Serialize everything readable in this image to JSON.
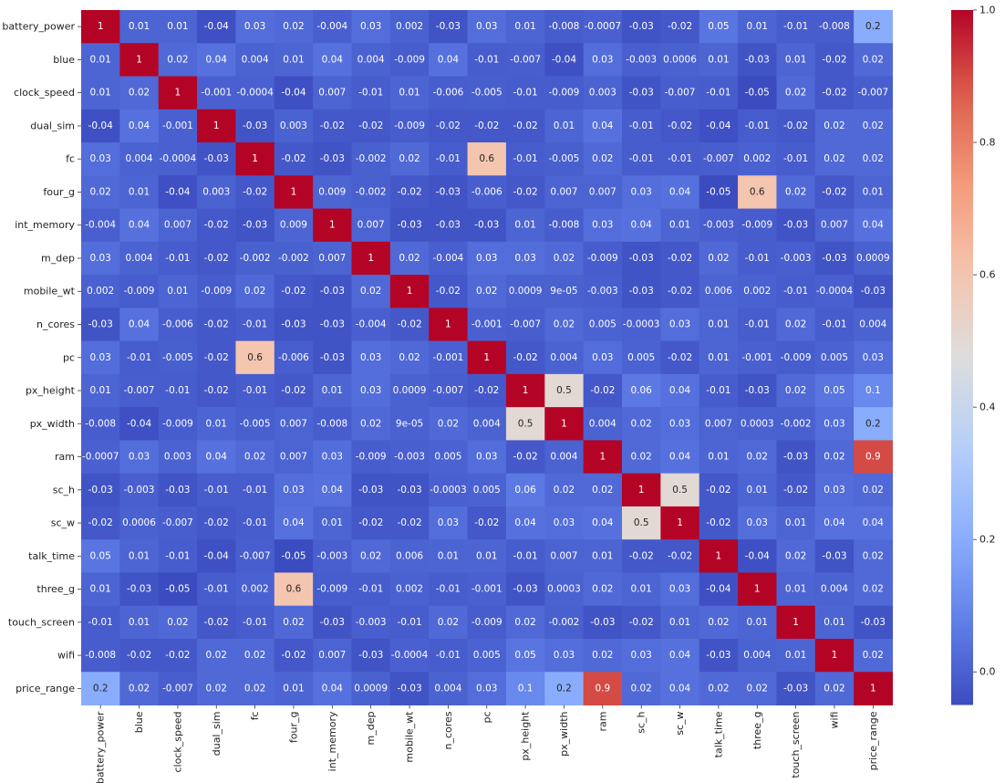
{
  "chart_data": {
    "type": "heatmap",
    "title": "",
    "xlabel": "",
    "ylabel": "",
    "labels": [
      "battery_power",
      "blue",
      "clock_speed",
      "dual_sim",
      "fc",
      "four_g",
      "int_memory",
      "m_dep",
      "mobile_wt",
      "n_cores",
      "pc",
      "px_height",
      "px_width",
      "ram",
      "sc_h",
      "sc_w",
      "talk_time",
      "three_g",
      "touch_screen",
      "wifi",
      "price_range"
    ],
    "matrix": [
      [
        "1",
        "0.01",
        "0.01",
        "-0.04",
        "0.03",
        "0.02",
        "-0.004",
        "0.03",
        "0.002",
        "-0.03",
        "0.03",
        "0.01",
        "-0.008",
        "-0.0007",
        "-0.03",
        "-0.02",
        "0.05",
        "0.01",
        "-0.01",
        "-0.008",
        "0.2"
      ],
      [
        "0.01",
        "1",
        "0.02",
        "0.04",
        "0.004",
        "0.01",
        "0.04",
        "0.004",
        "-0.009",
        "0.04",
        "-0.01",
        "-0.007",
        "-0.04",
        "0.03",
        "-0.003",
        "0.0006",
        "0.01",
        "-0.03",
        "0.01",
        "-0.02",
        "0.02"
      ],
      [
        "0.01",
        "0.02",
        "1",
        "-0.001",
        "-0.0004",
        "-0.04",
        "0.007",
        "-0.01",
        "0.01",
        "-0.006",
        "-0.005",
        "-0.01",
        "-0.009",
        "0.003",
        "-0.03",
        "-0.007",
        "-0.01",
        "-0.05",
        "0.02",
        "-0.02",
        "-0.007"
      ],
      [
        "-0.04",
        "0.04",
        "-0.001",
        "1",
        "-0.03",
        "0.003",
        "-0.02",
        "-0.02",
        "-0.009",
        "-0.02",
        "-0.02",
        "-0.02",
        "0.01",
        "0.04",
        "-0.01",
        "-0.02",
        "-0.04",
        "-0.01",
        "-0.02",
        "0.02",
        "0.02"
      ],
      [
        "0.03",
        "0.004",
        "-0.0004",
        "-0.03",
        "1",
        "-0.02",
        "-0.03",
        "-0.002",
        "0.02",
        "-0.01",
        "0.6",
        "-0.01",
        "-0.005",
        "0.02",
        "-0.01",
        "-0.01",
        "-0.007",
        "0.002",
        "-0.01",
        "0.02",
        "0.02"
      ],
      [
        "0.02",
        "0.01",
        "-0.04",
        "0.003",
        "-0.02",
        "1",
        "0.009",
        "-0.002",
        "-0.02",
        "-0.03",
        "-0.006",
        "-0.02",
        "0.007",
        "0.007",
        "0.03",
        "0.04",
        "-0.05",
        "0.6",
        "0.02",
        "-0.02",
        "0.01"
      ],
      [
        "-0.004",
        "0.04",
        "0.007",
        "-0.02",
        "-0.03",
        "0.009",
        "1",
        "0.007",
        "-0.03",
        "-0.03",
        "-0.03",
        "0.01",
        "-0.008",
        "0.03",
        "0.04",
        "0.01",
        "-0.003",
        "-0.009",
        "-0.03",
        "0.007",
        "0.04"
      ],
      [
        "0.03",
        "0.004",
        "-0.01",
        "-0.02",
        "-0.002",
        "-0.002",
        "0.007",
        "1",
        "0.02",
        "-0.004",
        "0.03",
        "0.03",
        "0.02",
        "-0.009",
        "-0.03",
        "-0.02",
        "0.02",
        "-0.01",
        "-0.003",
        "-0.03",
        "0.0009"
      ],
      [
        "0.002",
        "-0.009",
        "0.01",
        "-0.009",
        "0.02",
        "-0.02",
        "-0.03",
        "0.02",
        "1",
        "-0.02",
        "0.02",
        "0.0009",
        "9e-05",
        "-0.003",
        "-0.03",
        "-0.02",
        "0.006",
        "0.002",
        "-0.01",
        "-0.0004",
        "-0.03"
      ],
      [
        "-0.03",
        "0.04",
        "-0.006",
        "-0.02",
        "-0.01",
        "-0.03",
        "-0.03",
        "-0.004",
        "-0.02",
        "1",
        "-0.001",
        "-0.007",
        "0.02",
        "0.005",
        "-0.0003",
        "0.03",
        "0.01",
        "-0.01",
        "0.02",
        "-0.01",
        "0.004"
      ],
      [
        "0.03",
        "-0.01",
        "-0.005",
        "-0.02",
        "0.6",
        "-0.006",
        "-0.03",
        "0.03",
        "0.02",
        "-0.001",
        "1",
        "-0.02",
        "0.004",
        "0.03",
        "0.005",
        "-0.02",
        "0.01",
        "-0.001",
        "-0.009",
        "0.005",
        "0.03"
      ],
      [
        "0.01",
        "-0.007",
        "-0.01",
        "-0.02",
        "-0.01",
        "-0.02",
        "0.01",
        "0.03",
        "0.0009",
        "-0.007",
        "-0.02",
        "1",
        "0.5",
        "-0.02",
        "0.06",
        "0.04",
        "-0.01",
        "-0.03",
        "0.02",
        "0.05",
        "0.1"
      ],
      [
        "-0.008",
        "-0.04",
        "-0.009",
        "0.01",
        "-0.005",
        "0.007",
        "-0.008",
        "0.02",
        "9e-05",
        "0.02",
        "0.004",
        "0.5",
        "1",
        "0.004",
        "0.02",
        "0.03",
        "0.007",
        "0.0003",
        "-0.002",
        "0.03",
        "0.2"
      ],
      [
        "-0.0007",
        "0.03",
        "0.003",
        "0.04",
        "0.02",
        "0.007",
        "0.03",
        "-0.009",
        "-0.003",
        "0.005",
        "0.03",
        "-0.02",
        "0.004",
        "1",
        "0.02",
        "0.04",
        "0.01",
        "0.02",
        "-0.03",
        "0.02",
        "0.9"
      ],
      [
        "-0.03",
        "-0.003",
        "-0.03",
        "-0.01",
        "-0.01",
        "0.03",
        "0.04",
        "-0.03",
        "-0.03",
        "-0.0003",
        "0.005",
        "0.06",
        "0.02",
        "0.02",
        "1",
        "0.5",
        "-0.02",
        "0.01",
        "-0.02",
        "0.03",
        "0.02"
      ],
      [
        "-0.02",
        "0.0006",
        "-0.007",
        "-0.02",
        "-0.01",
        "0.04",
        "0.01",
        "-0.02",
        "-0.02",
        "0.03",
        "-0.02",
        "0.04",
        "0.03",
        "0.04",
        "0.5",
        "1",
        "-0.02",
        "0.03",
        "0.01",
        "0.04",
        "0.04"
      ],
      [
        "0.05",
        "0.01",
        "-0.01",
        "-0.04",
        "-0.007",
        "-0.05",
        "-0.003",
        "0.02",
        "0.006",
        "0.01",
        "0.01",
        "-0.01",
        "0.007",
        "0.01",
        "-0.02",
        "-0.02",
        "1",
        "-0.04",
        "0.02",
        "-0.03",
        "0.02"
      ],
      [
        "0.01",
        "-0.03",
        "-0.05",
        "-0.01",
        "0.002",
        "0.6",
        "-0.009",
        "-0.01",
        "0.002",
        "-0.01",
        "-0.001",
        "-0.03",
        "0.0003",
        "0.02",
        "0.01",
        "0.03",
        "-0.04",
        "1",
        "0.01",
        "0.004",
        "0.02"
      ],
      [
        "-0.01",
        "0.01",
        "0.02",
        "-0.02",
        "-0.01",
        "0.02",
        "-0.03",
        "-0.003",
        "-0.01",
        "0.02",
        "-0.009",
        "0.02",
        "-0.002",
        "-0.03",
        "-0.02",
        "0.01",
        "0.02",
        "0.01",
        "1",
        "0.01",
        "-0.03"
      ],
      [
        "-0.008",
        "-0.02",
        "-0.02",
        "0.02",
        "0.02",
        "-0.02",
        "0.007",
        "-0.03",
        "-0.0004",
        "-0.01",
        "0.005",
        "0.05",
        "0.03",
        "0.02",
        "0.03",
        "0.04",
        "-0.03",
        "0.004",
        "0.01",
        "1",
        "0.02"
      ],
      [
        "0.2",
        "0.02",
        "-0.007",
        "0.02",
        "0.02",
        "0.01",
        "0.04",
        "0.0009",
        "-0.03",
        "0.004",
        "0.03",
        "0.1",
        "0.2",
        "0.9",
        "0.02",
        "0.04",
        "0.02",
        "0.02",
        "-0.03",
        "0.02",
        "1"
      ]
    ],
    "value_range": [
      -0.05,
      1.0
    ],
    "colormap": "coolwarm",
    "colorbar_ticks": [
      "0.0",
      "0.2",
      "0.4",
      "0.6",
      "0.8",
      "1.0"
    ],
    "colorbar_tick_values": [
      0,
      0.2,
      0.4,
      0.6,
      0.8,
      1.0
    ],
    "annotations": true,
    "grid": false,
    "legend": "colorbar-right"
  }
}
